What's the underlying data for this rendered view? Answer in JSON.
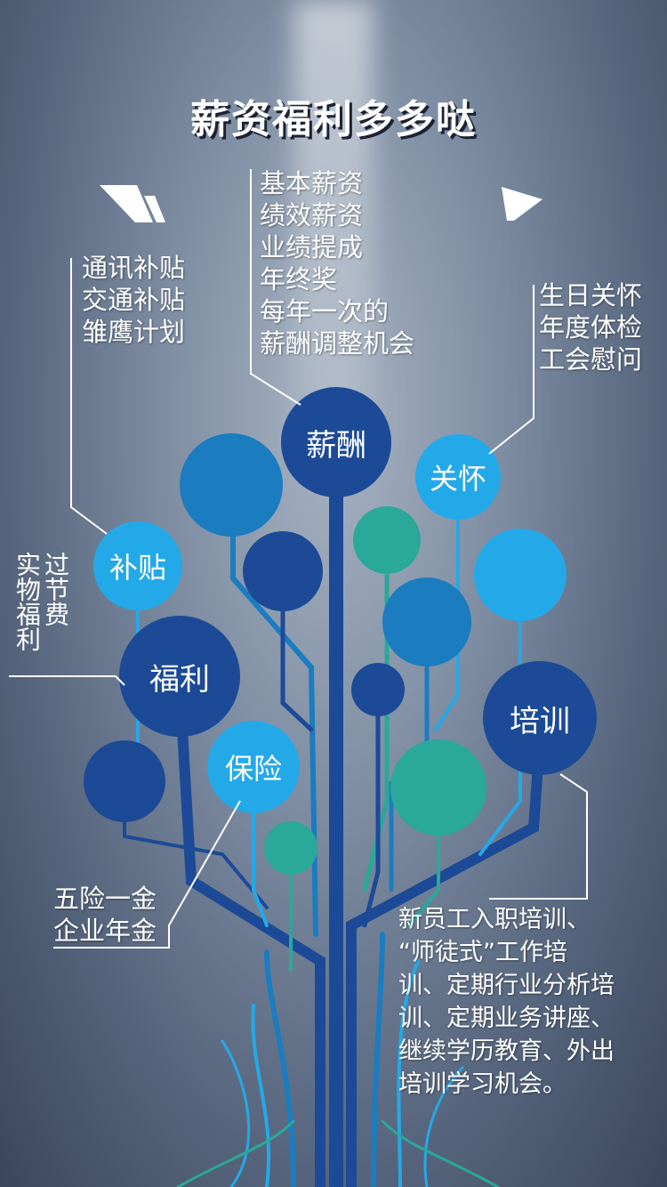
{
  "title": "薪资福利多多哒",
  "nodes": {
    "salary": "薪酬",
    "care": "关怀",
    "subsidy": "补贴",
    "welfare": "福利",
    "insurance": "保险",
    "training": "培训"
  },
  "salary_items": [
    "基本薪资",
    "绩效薪资",
    "业绩提成",
    "年终奖",
    "每年一次的",
    "薪酬调整机会"
  ],
  "subsidy_items": [
    "通讯补贴",
    "交通补贴",
    "雏鹰计划"
  ],
  "care_items": [
    "生日关怀",
    "年度体检",
    "工会慰问"
  ],
  "welfare_items": [
    "过节费",
    "实物福利"
  ],
  "insurance_items": [
    "五险一金",
    "企业年金"
  ],
  "training_items": [
    "新员工入职培训、",
    "“师徒式”工作培",
    "训、定期行业分析培",
    "训、定期业务讲座、",
    "继续学历教育、外出",
    "培训学习机会。"
  ],
  "colors": {
    "dark_blue": "#1c4a97",
    "mid_blue": "#1b7cc0",
    "light_blue": "#24a9e8",
    "teal": "#2aa89a"
  }
}
